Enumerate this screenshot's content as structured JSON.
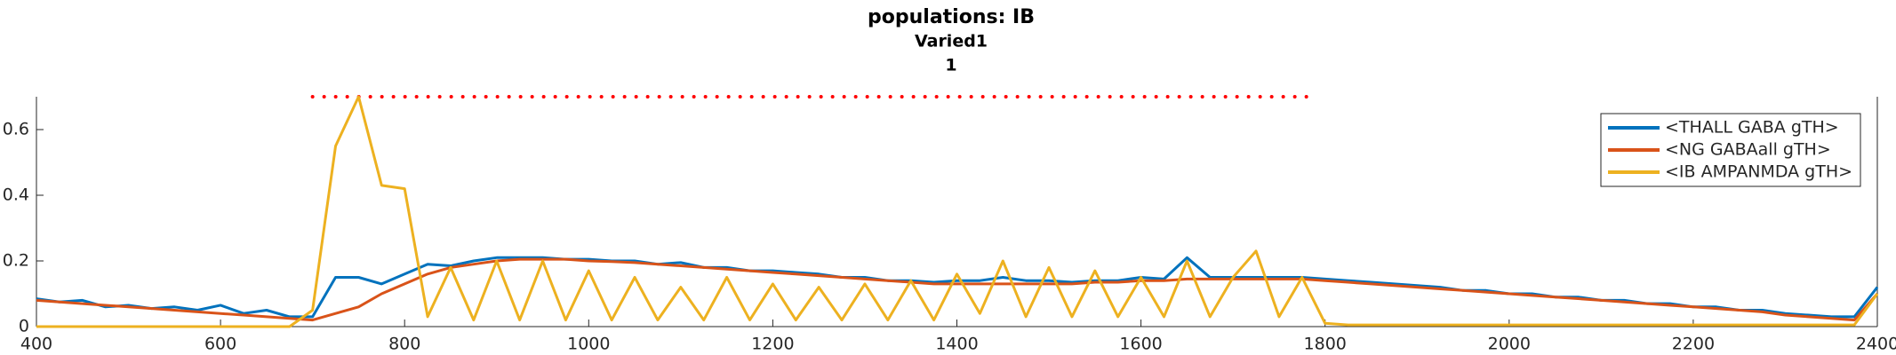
{
  "chart_data": {
    "type": "line",
    "title": "populations: IB",
    "subtitle": "Varied1",
    "subtitle2": "1",
    "x": [
      400,
      425,
      450,
      475,
      500,
      525,
      550,
      575,
      600,
      625,
      650,
      675,
      700,
      725,
      750,
      775,
      800,
      825,
      850,
      875,
      900,
      925,
      950,
      975,
      1000,
      1025,
      1050,
      1075,
      1100,
      1125,
      1150,
      1175,
      1200,
      1225,
      1250,
      1275,
      1300,
      1325,
      1350,
      1375,
      1400,
      1425,
      1450,
      1475,
      1500,
      1525,
      1550,
      1575,
      1600,
      1625,
      1650,
      1675,
      1700,
      1725,
      1750,
      1775,
      1800,
      1825,
      1850,
      1875,
      1900,
      1925,
      1950,
      1975,
      2000,
      2025,
      2050,
      2075,
      2100,
      2125,
      2150,
      2175,
      2200,
      2225,
      2250,
      2275,
      2300,
      2325,
      2350,
      2375,
      2400
    ],
    "series": [
      {
        "name": "<THALL GABA gTH>",
        "color": "#0072bd",
        "values": [
          0.085,
          0.075,
          0.08,
          0.06,
          0.065,
          0.055,
          0.06,
          0.05,
          0.065,
          0.04,
          0.05,
          0.03,
          0.03,
          0.15,
          0.15,
          0.13,
          0.16,
          0.19,
          0.185,
          0.2,
          0.21,
          0.21,
          0.21,
          0.205,
          0.205,
          0.2,
          0.2,
          0.19,
          0.195,
          0.18,
          0.18,
          0.17,
          0.17,
          0.165,
          0.16,
          0.15,
          0.15,
          0.14,
          0.14,
          0.135,
          0.14,
          0.14,
          0.15,
          0.14,
          0.14,
          0.135,
          0.14,
          0.14,
          0.15,
          0.145,
          0.21,
          0.15,
          0.15,
          0.15,
          0.15,
          0.15,
          0.145,
          0.14,
          0.135,
          0.13,
          0.125,
          0.12,
          0.11,
          0.11,
          0.1,
          0.1,
          0.09,
          0.09,
          0.08,
          0.08,
          0.07,
          0.07,
          0.06,
          0.06,
          0.05,
          0.05,
          0.04,
          0.035,
          0.03,
          0.03,
          0.12
        ]
      },
      {
        "name": "<NG GABAall gTH>",
        "color": "#d95319",
        "values": [
          0.08,
          0.075,
          0.07,
          0.065,
          0.06,
          0.055,
          0.05,
          0.045,
          0.04,
          0.035,
          0.03,
          0.025,
          0.02,
          0.04,
          0.06,
          0.1,
          0.13,
          0.16,
          0.18,
          0.19,
          0.2,
          0.205,
          0.205,
          0.205,
          0.2,
          0.198,
          0.195,
          0.19,
          0.185,
          0.18,
          0.175,
          0.17,
          0.165,
          0.16,
          0.155,
          0.15,
          0.145,
          0.14,
          0.135,
          0.13,
          0.13,
          0.13,
          0.13,
          0.13,
          0.13,
          0.13,
          0.135,
          0.135,
          0.14,
          0.14,
          0.145,
          0.145,
          0.145,
          0.145,
          0.145,
          0.145,
          0.14,
          0.135,
          0.13,
          0.125,
          0.12,
          0.115,
          0.11,
          0.105,
          0.1,
          0.095,
          0.09,
          0.085,
          0.08,
          0.075,
          0.07,
          0.065,
          0.06,
          0.055,
          0.05,
          0.045,
          0.035,
          0.03,
          0.025,
          0.02,
          0.1
        ]
      },
      {
        "name": "<IB AMPANMDA gTH>",
        "color": "#edb120",
        "values": [
          0,
          0,
          0,
          0,
          0,
          0,
          0,
          0,
          0,
          0,
          0,
          0,
          0.05,
          0.55,
          0.7,
          0.43,
          0.42,
          0.03,
          0.18,
          0.02,
          0.2,
          0.02,
          0.2,
          0.02,
          0.17,
          0.02,
          0.15,
          0.02,
          0.12,
          0.02,
          0.15,
          0.02,
          0.13,
          0.02,
          0.12,
          0.02,
          0.13,
          0.02,
          0.14,
          0.02,
          0.16,
          0.04,
          0.2,
          0.03,
          0.18,
          0.03,
          0.17,
          0.03,
          0.15,
          0.03,
          0.2,
          0.03,
          0.15,
          0.23,
          0.03,
          0.15,
          0.01,
          0.005,
          0.005,
          0.005,
          0.005,
          0.005,
          0.005,
          0.005,
          0.005,
          0.005,
          0.005,
          0.005,
          0.005,
          0.005,
          0.005,
          0.005,
          0.005,
          0.005,
          0.005,
          0.005,
          0.005,
          0.005,
          0.005,
          0.005,
          0.1
        ]
      }
    ],
    "xlim": [
      400,
      2400
    ],
    "ylim": [
      0,
      0.7
    ],
    "xticks": [
      400,
      600,
      800,
      1000,
      1200,
      1400,
      1600,
      1800,
      2000,
      2200,
      2400
    ],
    "yticks": [
      0,
      0.2,
      0.4,
      0.6
    ],
    "stim_line": {
      "x": [
        700,
        1780
      ],
      "y": 0.7,
      "color": "#ff0000"
    },
    "legend": "upper right"
  }
}
